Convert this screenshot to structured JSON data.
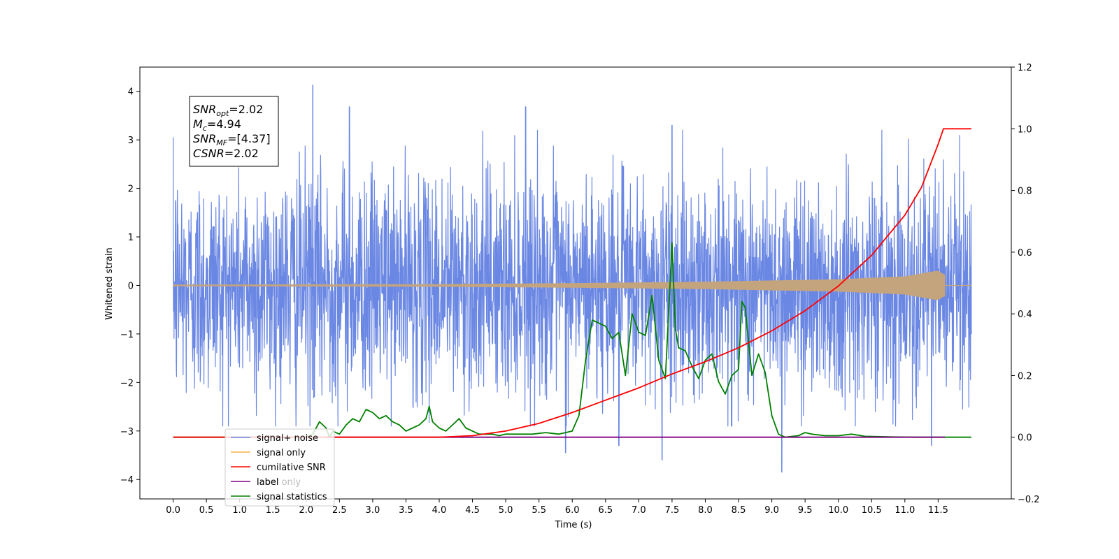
{
  "chart_data": {
    "type": "line",
    "xlabel": "Time (s)",
    "ylabel": "Whitened strain",
    "xlim": [
      -0.5,
      12.6
    ],
    "ylim_left": [
      -4.4,
      4.5
    ],
    "ylim_right": [
      -0.2,
      1.2
    ],
    "x_ticks": [
      "0.0",
      "0.5",
      "1.0",
      "1.5",
      "2.0",
      "2.5",
      "3.0",
      "3.5",
      "4.0",
      "4.5",
      "5.0",
      "5.5",
      "6.0",
      "6.5",
      "7.0",
      "7.5",
      "8.0",
      "8.5",
      "9.0",
      "9.5",
      "10.0",
      "10.5",
      "11.0",
      "11.5"
    ],
    "y_ticks_left": [
      "4",
      "3",
      "2",
      "1",
      "0",
      "−1",
      "−2",
      "−3",
      "−4"
    ],
    "y_ticks_right": [
      "1.2",
      "1.0",
      "0.8",
      "0.6",
      "0.4",
      "0.2",
      "0.0",
      "−0.2"
    ],
    "annotation": {
      "lines": [
        {
          "base": "SNR",
          "sub": "opt",
          "rest": "=2.02"
        },
        {
          "base": "M",
          "sub": "c",
          "rest": "=4.94"
        },
        {
          "base": "SNR",
          "sub": "MF",
          "rest": "=[4.37]"
        },
        {
          "base": "CSNR",
          "sub": "",
          "rest": "=2.02"
        }
      ]
    },
    "legend_position": "lower-left",
    "series": [
      {
        "name": "signal+ noise",
        "axis": "left",
        "color": "#6a87e3",
        "noise_std": 1.1,
        "x_range": [
          0.0,
          12.0
        ],
        "notable_peaks": [
          [
            2.1,
            4.13
          ],
          [
            2.65,
            3.68
          ],
          [
            5.3,
            3.68
          ],
          [
            7.5,
            3.3
          ],
          [
            9.15,
            -3.85
          ],
          [
            7.35,
            -3.6
          ],
          [
            5.9,
            -3.45
          ],
          [
            11.4,
            -3.3
          ],
          [
            6.7,
            -3.3
          ]
        ]
      },
      {
        "name": "signal only",
        "axis": "left",
        "color": "#c4a47c",
        "x_range": [
          0.0,
          11.6
        ],
        "envelope": [
          [
            0.0,
            0.01
          ],
          [
            4.0,
            0.02
          ],
          [
            6.0,
            0.04
          ],
          [
            8.0,
            0.07
          ],
          [
            10.0,
            0.12
          ],
          [
            11.0,
            0.18
          ],
          [
            11.5,
            0.3
          ],
          [
            11.58,
            0.22
          ]
        ]
      },
      {
        "name": "cumilative SNR",
        "axis": "right",
        "color": "#ff0000",
        "points": [
          [
            0.0,
            0.0
          ],
          [
            4.0,
            0.0
          ],
          [
            4.5,
            0.005
          ],
          [
            5.0,
            0.02
          ],
          [
            5.5,
            0.045
          ],
          [
            6.0,
            0.08
          ],
          [
            6.5,
            0.12
          ],
          [
            7.0,
            0.16
          ],
          [
            7.5,
            0.205
          ],
          [
            8.0,
            0.245
          ],
          [
            8.5,
            0.29
          ],
          [
            9.0,
            0.345
          ],
          [
            9.5,
            0.41
          ],
          [
            10.0,
            0.49
          ],
          [
            10.5,
            0.59
          ],
          [
            11.0,
            0.72
          ],
          [
            11.25,
            0.81
          ],
          [
            11.5,
            0.95
          ],
          [
            11.58,
            1.0
          ],
          [
            12.0,
            1.0
          ]
        ]
      },
      {
        "name": "label",
        "axis": "right",
        "color": "#800080",
        "points": [
          [
            2.3,
            0.0
          ],
          [
            11.6,
            0.0
          ]
        ]
      },
      {
        "name": "label only",
        "axis": "right",
        "color": "#bbbbbb",
        "points": []
      },
      {
        "name": "signal statistics",
        "axis": "right",
        "color": "#008000",
        "points": [
          [
            0.0,
            0.0
          ],
          [
            2.0,
            0.0
          ],
          [
            2.1,
            0.01
          ],
          [
            2.2,
            0.05
          ],
          [
            2.3,
            0.03
          ],
          [
            2.35,
            0.0
          ],
          [
            2.4,
            0.02
          ],
          [
            2.5,
            0.01
          ],
          [
            2.6,
            0.04
          ],
          [
            2.7,
            0.06
          ],
          [
            2.8,
            0.05
          ],
          [
            2.9,
            0.09
          ],
          [
            3.0,
            0.08
          ],
          [
            3.1,
            0.06
          ],
          [
            3.2,
            0.07
          ],
          [
            3.3,
            0.05
          ],
          [
            3.4,
            0.04
          ],
          [
            3.5,
            0.02
          ],
          [
            3.6,
            0.03
          ],
          [
            3.7,
            0.04
          ],
          [
            3.8,
            0.06
          ],
          [
            3.85,
            0.1
          ],
          [
            3.9,
            0.05
          ],
          [
            4.0,
            0.03
          ],
          [
            4.1,
            0.02
          ],
          [
            4.2,
            0.04
          ],
          [
            4.3,
            0.06
          ],
          [
            4.4,
            0.03
          ],
          [
            4.5,
            0.02
          ],
          [
            4.6,
            0.01
          ],
          [
            4.7,
            0.01
          ],
          [
            4.8,
            0.01
          ],
          [
            4.9,
            0.005
          ],
          [
            5.0,
            0.01
          ],
          [
            5.2,
            0.01
          ],
          [
            5.4,
            0.01
          ],
          [
            5.6,
            0.015
          ],
          [
            5.8,
            0.01
          ],
          [
            5.9,
            0.015
          ],
          [
            6.0,
            0.02
          ],
          [
            6.1,
            0.07
          ],
          [
            6.2,
            0.25
          ],
          [
            6.3,
            0.38
          ],
          [
            6.4,
            0.37
          ],
          [
            6.5,
            0.36
          ],
          [
            6.6,
            0.32
          ],
          [
            6.7,
            0.34
          ],
          [
            6.8,
            0.2
          ],
          [
            6.9,
            0.4
          ],
          [
            7.0,
            0.34
          ],
          [
            7.1,
            0.33
          ],
          [
            7.2,
            0.46
          ],
          [
            7.3,
            0.25
          ],
          [
            7.4,
            0.19
          ],
          [
            7.5,
            0.63
          ],
          [
            7.55,
            0.35
          ],
          [
            7.6,
            0.29
          ],
          [
            7.7,
            0.28
          ],
          [
            7.8,
            0.23
          ],
          [
            7.9,
            0.19
          ],
          [
            8.0,
            0.25
          ],
          [
            8.1,
            0.27
          ],
          [
            8.2,
            0.18
          ],
          [
            8.3,
            0.14
          ],
          [
            8.4,
            0.2
          ],
          [
            8.5,
            0.22
          ],
          [
            8.55,
            0.44
          ],
          [
            8.6,
            0.42
          ],
          [
            8.7,
            0.2
          ],
          [
            8.8,
            0.27
          ],
          [
            8.9,
            0.21
          ],
          [
            9.0,
            0.07
          ],
          [
            9.1,
            0.01
          ],
          [
            9.2,
            0.0
          ],
          [
            9.4,
            0.005
          ],
          [
            9.5,
            0.015
          ],
          [
            9.6,
            0.01
          ],
          [
            9.8,
            0.005
          ],
          [
            10.0,
            0.005
          ],
          [
            10.2,
            0.01
          ],
          [
            10.4,
            0.003
          ],
          [
            10.8,
            0.001
          ],
          [
            11.2,
            0.0
          ],
          [
            12.0,
            0.0
          ]
        ]
      }
    ]
  }
}
